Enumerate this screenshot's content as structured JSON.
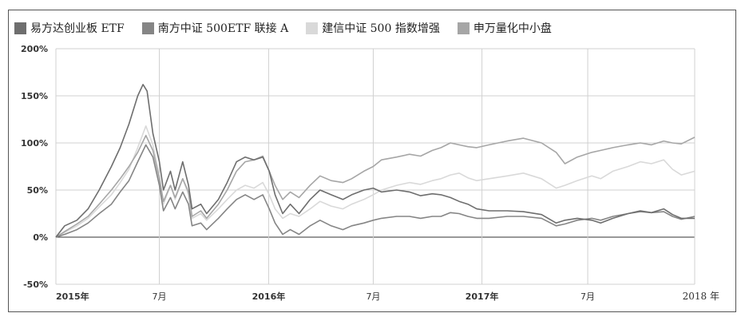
{
  "chart_data": {
    "type": "line",
    "title": "",
    "xlabel": "",
    "ylabel": "",
    "ylim": [
      -50,
      200
    ],
    "y_unit": "%",
    "y_ticks": [
      "200%",
      "150%",
      "100%",
      "50%",
      "0%",
      "-50%"
    ],
    "y_tick_values": [
      200,
      150,
      100,
      50,
      0,
      -50
    ],
    "x_ticks": [
      {
        "label": "2015年",
        "date": "2015-01-05",
        "bold": true
      },
      {
        "label": "7月",
        "date": "2015-07-01",
        "bold": false
      },
      {
        "label": "2016年",
        "date": "2016-01-04",
        "bold": true
      },
      {
        "label": "7月",
        "date": "2016-07-01",
        "bold": false
      },
      {
        "label": "2017年",
        "date": "2017-01-03",
        "bold": true
      },
      {
        "label": "7月",
        "date": "2017-07-03",
        "bold": false
      },
      {
        "label": "2018 年",
        "date": "2018-01-02",
        "bold": false
      }
    ],
    "xlim": [
      "2015-01-05",
      "2018-01-02"
    ],
    "grid": true,
    "legend_position": "top-left",
    "series": [
      {
        "name": "易方达创业板 ETF",
        "color": "#6e6e6e",
        "points": [
          [
            "2015-01-05",
            0
          ],
          [
            "2015-01-20",
            12
          ],
          [
            "2015-02-10",
            18
          ],
          [
            "2015-03-01",
            30
          ],
          [
            "2015-03-20",
            50
          ],
          [
            "2015-04-10",
            75
          ],
          [
            "2015-04-25",
            95
          ],
          [
            "2015-05-10",
            120
          ],
          [
            "2015-05-25",
            150
          ],
          [
            "2015-06-03",
            162
          ],
          [
            "2015-06-10",
            155
          ],
          [
            "2015-06-20",
            110
          ],
          [
            "2015-07-01",
            80
          ],
          [
            "2015-07-08",
            50
          ],
          [
            "2015-07-20",
            70
          ],
          [
            "2015-07-28",
            50
          ],
          [
            "2015-08-10",
            80
          ],
          [
            "2015-08-20",
            55
          ],
          [
            "2015-08-26",
            30
          ],
          [
            "2015-09-10",
            35
          ],
          [
            "2015-09-20",
            25
          ],
          [
            "2015-10-10",
            40
          ],
          [
            "2015-10-25",
            58
          ],
          [
            "2015-11-10",
            80
          ],
          [
            "2015-11-25",
            85
          ],
          [
            "2015-12-10",
            82
          ],
          [
            "2015-12-25",
            85
          ],
          [
            "2016-01-05",
            70
          ],
          [
            "2016-01-15",
            45
          ],
          [
            "2016-01-28",
            25
          ],
          [
            "2016-02-10",
            35
          ],
          [
            "2016-02-25",
            25
          ],
          [
            "2016-03-15",
            40
          ],
          [
            "2016-04-01",
            50
          ],
          [
            "2016-04-20",
            45
          ],
          [
            "2016-05-10",
            40
          ],
          [
            "2016-05-25",
            45
          ],
          [
            "2016-06-15",
            50
          ],
          [
            "2016-07-01",
            52
          ],
          [
            "2016-07-15",
            48
          ],
          [
            "2016-08-10",
            50
          ],
          [
            "2016-09-01",
            48
          ],
          [
            "2016-09-20",
            44
          ],
          [
            "2016-10-10",
            46
          ],
          [
            "2016-10-25",
            45
          ],
          [
            "2016-11-10",
            42
          ],
          [
            "2016-11-25",
            38
          ],
          [
            "2016-12-10",
            35
          ],
          [
            "2016-12-25",
            30
          ],
          [
            "2017-01-15",
            28
          ],
          [
            "2017-02-15",
            28
          ],
          [
            "2017-03-15",
            27
          ],
          [
            "2017-04-15",
            24
          ],
          [
            "2017-05-10",
            15
          ],
          [
            "2017-05-25",
            18
          ],
          [
            "2017-06-15",
            20
          ],
          [
            "2017-07-10",
            18
          ],
          [
            "2017-07-25",
            15
          ],
          [
            "2017-08-15",
            20
          ],
          [
            "2017-09-10",
            25
          ],
          [
            "2017-10-01",
            28
          ],
          [
            "2017-10-20",
            26
          ],
          [
            "2017-11-10",
            30
          ],
          [
            "2017-11-25",
            24
          ],
          [
            "2017-12-10",
            20
          ],
          [
            "2018-01-02",
            20
          ]
        ]
      },
      {
        "name": "南方中证 500ETF 联接 A",
        "color": "#858585",
        "points": [
          [
            "2015-01-05",
            0
          ],
          [
            "2015-01-20",
            3
          ],
          [
            "2015-02-10",
            8
          ],
          [
            "2015-03-01",
            15
          ],
          [
            "2015-03-20",
            25
          ],
          [
            "2015-04-10",
            35
          ],
          [
            "2015-04-25",
            48
          ],
          [
            "2015-05-10",
            60
          ],
          [
            "2015-05-25",
            80
          ],
          [
            "2015-06-08",
            98
          ],
          [
            "2015-06-20",
            85
          ],
          [
            "2015-07-01",
            55
          ],
          [
            "2015-07-08",
            28
          ],
          [
            "2015-07-20",
            42
          ],
          [
            "2015-07-28",
            30
          ],
          [
            "2015-08-10",
            48
          ],
          [
            "2015-08-20",
            35
          ],
          [
            "2015-08-26",
            12
          ],
          [
            "2015-09-10",
            15
          ],
          [
            "2015-09-20",
            8
          ],
          [
            "2015-10-10",
            20
          ],
          [
            "2015-10-25",
            30
          ],
          [
            "2015-11-10",
            40
          ],
          [
            "2015-11-25",
            45
          ],
          [
            "2015-12-10",
            40
          ],
          [
            "2015-12-25",
            45
          ],
          [
            "2016-01-05",
            30
          ],
          [
            "2016-01-15",
            15
          ],
          [
            "2016-01-28",
            3
          ],
          [
            "2016-02-10",
            8
          ],
          [
            "2016-02-25",
            3
          ],
          [
            "2016-03-15",
            12
          ],
          [
            "2016-04-01",
            18
          ],
          [
            "2016-04-20",
            12
          ],
          [
            "2016-05-10",
            8
          ],
          [
            "2016-05-25",
            12
          ],
          [
            "2016-06-15",
            15
          ],
          [
            "2016-07-01",
            18
          ],
          [
            "2016-07-15",
            20
          ],
          [
            "2016-08-10",
            22
          ],
          [
            "2016-09-01",
            22
          ],
          [
            "2016-09-20",
            20
          ],
          [
            "2016-10-10",
            22
          ],
          [
            "2016-10-25",
            22
          ],
          [
            "2016-11-10",
            26
          ],
          [
            "2016-11-25",
            25
          ],
          [
            "2016-12-10",
            22
          ],
          [
            "2016-12-25",
            20
          ],
          [
            "2017-01-15",
            20
          ],
          [
            "2017-02-15",
            22
          ],
          [
            "2017-03-15",
            22
          ],
          [
            "2017-04-15",
            20
          ],
          [
            "2017-05-10",
            12
          ],
          [
            "2017-05-25",
            14
          ],
          [
            "2017-06-15",
            18
          ],
          [
            "2017-07-10",
            20
          ],
          [
            "2017-07-25",
            18
          ],
          [
            "2017-08-15",
            22
          ],
          [
            "2017-09-10",
            25
          ],
          [
            "2017-10-01",
            27
          ],
          [
            "2017-10-20",
            26
          ],
          [
            "2017-11-10",
            27
          ],
          [
            "2017-11-25",
            22
          ],
          [
            "2017-12-10",
            19
          ],
          [
            "2018-01-02",
            22
          ]
        ]
      },
      {
        "name": "建信中证 500 指数增强",
        "color": "#d9d9d9",
        "points": [
          [
            "2015-01-05",
            0
          ],
          [
            "2015-01-20",
            5
          ],
          [
            "2015-02-10",
            12
          ],
          [
            "2015-03-01",
            20
          ],
          [
            "2015-03-20",
            32
          ],
          [
            "2015-04-10",
            45
          ],
          [
            "2015-04-25",
            58
          ],
          [
            "2015-05-10",
            72
          ],
          [
            "2015-05-25",
            95
          ],
          [
            "2015-06-08",
            118
          ],
          [
            "2015-06-20",
            98
          ],
          [
            "2015-07-01",
            65
          ],
          [
            "2015-07-08",
            35
          ],
          [
            "2015-07-20",
            55
          ],
          [
            "2015-07-28",
            40
          ],
          [
            "2015-08-10",
            62
          ],
          [
            "2015-08-20",
            45
          ],
          [
            "2015-08-26",
            20
          ],
          [
            "2015-09-10",
            25
          ],
          [
            "2015-09-20",
            18
          ],
          [
            "2015-10-10",
            30
          ],
          [
            "2015-10-25",
            40
          ],
          [
            "2015-11-10",
            50
          ],
          [
            "2015-11-25",
            55
          ],
          [
            "2015-12-10",
            52
          ],
          [
            "2015-12-25",
            58
          ],
          [
            "2016-01-05",
            45
          ],
          [
            "2016-01-15",
            30
          ],
          [
            "2016-01-28",
            20
          ],
          [
            "2016-02-10",
            25
          ],
          [
            "2016-02-25",
            22
          ],
          [
            "2016-03-15",
            30
          ],
          [
            "2016-04-01",
            38
          ],
          [
            "2016-04-20",
            33
          ],
          [
            "2016-05-10",
            30
          ],
          [
            "2016-05-25",
            35
          ],
          [
            "2016-06-15",
            40
          ],
          [
            "2016-07-01",
            45
          ],
          [
            "2016-07-15",
            50
          ],
          [
            "2016-08-10",
            55
          ],
          [
            "2016-09-01",
            58
          ],
          [
            "2016-09-20",
            56
          ],
          [
            "2016-10-10",
            60
          ],
          [
            "2016-10-25",
            62
          ],
          [
            "2016-11-10",
            66
          ],
          [
            "2016-11-25",
            68
          ],
          [
            "2016-12-10",
            63
          ],
          [
            "2016-12-25",
            60
          ],
          [
            "2017-01-15",
            62
          ],
          [
            "2017-02-15",
            65
          ],
          [
            "2017-03-15",
            68
          ],
          [
            "2017-04-15",
            62
          ],
          [
            "2017-05-10",
            52
          ],
          [
            "2017-05-25",
            55
          ],
          [
            "2017-06-15",
            60
          ],
          [
            "2017-07-10",
            65
          ],
          [
            "2017-07-25",
            62
          ],
          [
            "2017-08-15",
            70
          ],
          [
            "2017-09-10",
            75
          ],
          [
            "2017-10-01",
            80
          ],
          [
            "2017-10-20",
            78
          ],
          [
            "2017-11-10",
            82
          ],
          [
            "2017-11-25",
            72
          ],
          [
            "2017-12-10",
            66
          ],
          [
            "2018-01-02",
            70
          ]
        ]
      },
      {
        "name": "申万量化中小盘",
        "color": "#a6a6a6",
        "points": [
          [
            "2015-01-05",
            0
          ],
          [
            "2015-01-20",
            6
          ],
          [
            "2015-02-10",
            14
          ],
          [
            "2015-03-01",
            22
          ],
          [
            "2015-03-20",
            35
          ],
          [
            "2015-04-10",
            50
          ],
          [
            "2015-04-25",
            62
          ],
          [
            "2015-05-10",
            75
          ],
          [
            "2015-05-25",
            90
          ],
          [
            "2015-06-08",
            108
          ],
          [
            "2015-06-20",
            92
          ],
          [
            "2015-07-01",
            62
          ],
          [
            "2015-07-08",
            38
          ],
          [
            "2015-07-20",
            55
          ],
          [
            "2015-07-28",
            42
          ],
          [
            "2015-08-10",
            62
          ],
          [
            "2015-08-20",
            48
          ],
          [
            "2015-08-26",
            22
          ],
          [
            "2015-09-10",
            28
          ],
          [
            "2015-09-20",
            20
          ],
          [
            "2015-10-10",
            35
          ],
          [
            "2015-10-25",
            50
          ],
          [
            "2015-11-10",
            70
          ],
          [
            "2015-11-25",
            80
          ],
          [
            "2015-12-10",
            82
          ],
          [
            "2015-12-25",
            86
          ],
          [
            "2016-01-05",
            70
          ],
          [
            "2016-01-15",
            55
          ],
          [
            "2016-01-28",
            40
          ],
          [
            "2016-02-10",
            48
          ],
          [
            "2016-02-25",
            42
          ],
          [
            "2016-03-15",
            55
          ],
          [
            "2016-04-01",
            65
          ],
          [
            "2016-04-20",
            60
          ],
          [
            "2016-05-10",
            58
          ],
          [
            "2016-05-25",
            62
          ],
          [
            "2016-06-15",
            70
          ],
          [
            "2016-07-01",
            75
          ],
          [
            "2016-07-15",
            82
          ],
          [
            "2016-08-10",
            85
          ],
          [
            "2016-09-01",
            88
          ],
          [
            "2016-09-20",
            86
          ],
          [
            "2016-10-10",
            92
          ],
          [
            "2016-10-25",
            95
          ],
          [
            "2016-11-10",
            100
          ],
          [
            "2016-11-25",
            98
          ],
          [
            "2016-12-10",
            96
          ],
          [
            "2016-12-25",
            95
          ],
          [
            "2017-01-15",
            98
          ],
          [
            "2017-02-15",
            102
          ],
          [
            "2017-03-15",
            105
          ],
          [
            "2017-04-15",
            100
          ],
          [
            "2017-05-10",
            90
          ],
          [
            "2017-05-25",
            78
          ],
          [
            "2017-06-15",
            85
          ],
          [
            "2017-07-10",
            90
          ],
          [
            "2017-07-25",
            92
          ],
          [
            "2017-08-15",
            95
          ],
          [
            "2017-09-10",
            98
          ],
          [
            "2017-10-01",
            100
          ],
          [
            "2017-10-20",
            98
          ],
          [
            "2017-11-10",
            102
          ],
          [
            "2017-11-25",
            100
          ],
          [
            "2017-12-10",
            99
          ],
          [
            "2018-01-02",
            106
          ]
        ]
      }
    ]
  }
}
